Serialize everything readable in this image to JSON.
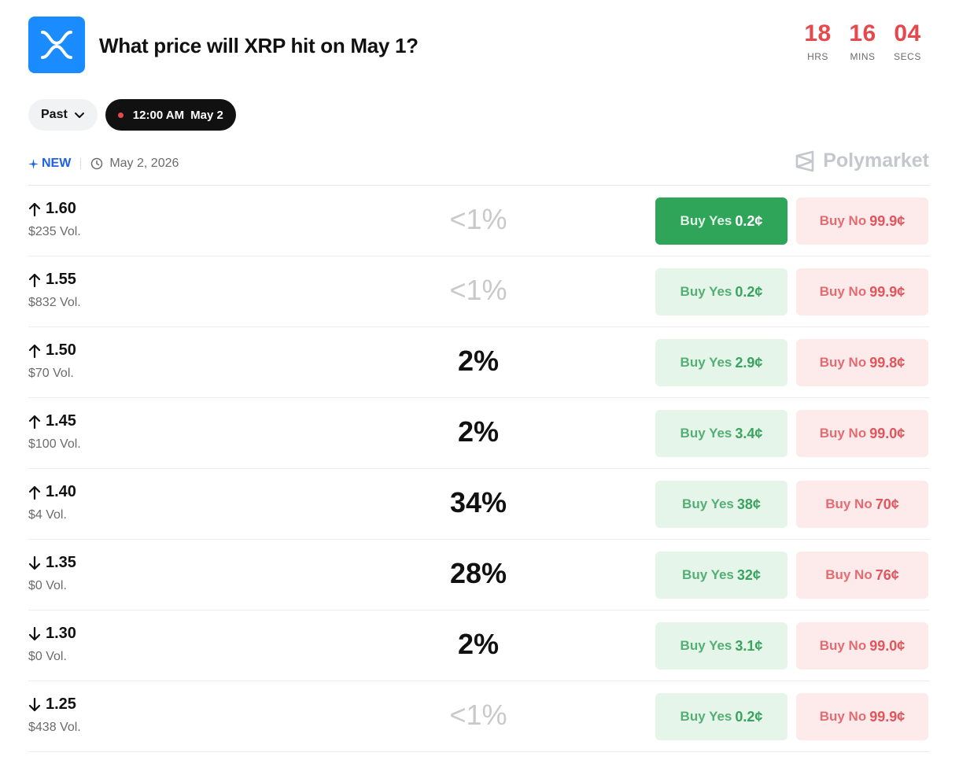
{
  "market": {
    "title": "What price will XRP hit on May 1?",
    "logo_icon": "xrp-logo",
    "brand_color": "#1a8cff"
  },
  "countdown": {
    "hours": "18",
    "hours_label": "HRS",
    "minutes": "16",
    "minutes_label": "MINS",
    "seconds": "04",
    "seconds_label": "SECS"
  },
  "filters": {
    "period_label": "Past",
    "time": "12:00 AM",
    "date": "May 2"
  },
  "meta": {
    "new_label": "NEW",
    "date": "May 2, 2026"
  },
  "brand": {
    "name": "Polymarket"
  },
  "rows": [
    {
      "direction": "up",
      "strike": "1.60",
      "volume": "$235 Vol.",
      "probability": "<1%",
      "yes_label": "Buy Yes",
      "yes_price": "0.2¢",
      "no_label": "Buy No",
      "no_price": "99.9¢"
    },
    {
      "direction": "up",
      "strike": "1.55",
      "volume": "$832 Vol.",
      "probability": "<1%",
      "yes_label": "Buy Yes",
      "yes_price": "0.2¢",
      "no_label": "Buy No",
      "no_price": "99.9¢"
    },
    {
      "direction": "up",
      "strike": "1.50",
      "volume": "$70 Vol.",
      "probability": "2%",
      "yes_label": "Buy Yes",
      "yes_price": "2.9¢",
      "no_label": "Buy No",
      "no_price": "99.8¢"
    },
    {
      "direction": "up",
      "strike": "1.45",
      "volume": "$100 Vol.",
      "probability": "2%",
      "yes_label": "Buy Yes",
      "yes_price": "3.4¢",
      "no_label": "Buy No",
      "no_price": "99.0¢"
    },
    {
      "direction": "up",
      "strike": "1.40",
      "volume": "$4 Vol.",
      "probability": "34%",
      "yes_label": "Buy Yes",
      "yes_price": "38¢",
      "no_label": "Buy No",
      "no_price": "70¢"
    },
    {
      "direction": "down",
      "strike": "1.35",
      "volume": "$0 Vol.",
      "probability": "28%",
      "yes_label": "Buy Yes",
      "yes_price": "32¢",
      "no_label": "Buy No",
      "no_price": "76¢"
    },
    {
      "direction": "down",
      "strike": "1.30",
      "volume": "$0 Vol.",
      "probability": "2%",
      "yes_label": "Buy Yes",
      "yes_price": "3.1¢",
      "no_label": "Buy No",
      "no_price": "99.0¢"
    },
    {
      "direction": "down",
      "strike": "1.25",
      "volume": "$438 Vol.",
      "probability": "<1%",
      "yes_label": "Buy Yes",
      "yes_price": "0.2¢",
      "no_label": "Buy No",
      "no_price": "99.9¢"
    }
  ],
  "colors": {
    "countdown": "#e5484d",
    "yes_bg": "#e6f5ea",
    "yes_active_bg": "#2fa55a",
    "yes_text": "#3aa35f",
    "no_bg": "#fdeaea",
    "no_text": "#e0565c",
    "new_tag": "#1f5fe0"
  }
}
